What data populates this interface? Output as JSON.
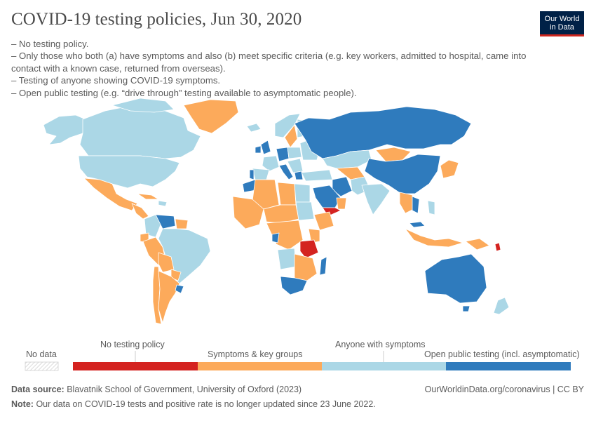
{
  "header": {
    "title": "COVID-19 testing policies, Jun 30, 2020",
    "logo_line1": "Our World",
    "logo_line2": "in Data"
  },
  "subtitle": {
    "lines": [
      "– No testing policy.",
      "– Only those who both (a) have symptoms and also (b) meet specific criteria (e.g. key workers, admitted to hospital, came into contact with a known case, returned from overseas).",
      "– Testing of anyone showing COVID-19 symptoms.",
      "– Open public testing (e.g. “drive through” testing available to asymptomatic people)."
    ]
  },
  "colors": {
    "no_testing": "#d42320",
    "symptoms_key_groups": "#fcaa5b",
    "anyone_symptoms": "#abd7e6",
    "open_public": "#2f7bbd",
    "no_data": "#e8e8e8",
    "border": "#ffffff"
  },
  "legend": {
    "no_data": "No data",
    "categories": [
      {
        "label": "No testing policy",
        "color": "#d42320"
      },
      {
        "label": "Symptoms & key groups",
        "color": "#fcaa5b"
      },
      {
        "label": "Anyone with symptoms",
        "color": "#abd7e6"
      },
      {
        "label": "Open public testing (incl. asymptomatic)",
        "color": "#2f7bbd"
      }
    ]
  },
  "footer": {
    "source_label": "Data source:",
    "source_text": "Blavatnik School of Government, University of Oxford (2023)",
    "note_label": "Note:",
    "note_text": "Our data on COVID-19 tests and positive rate is no longer updated since 23 June 2022.",
    "url": "OurWorldinData.org/coronavirus | CC BY"
  }
}
